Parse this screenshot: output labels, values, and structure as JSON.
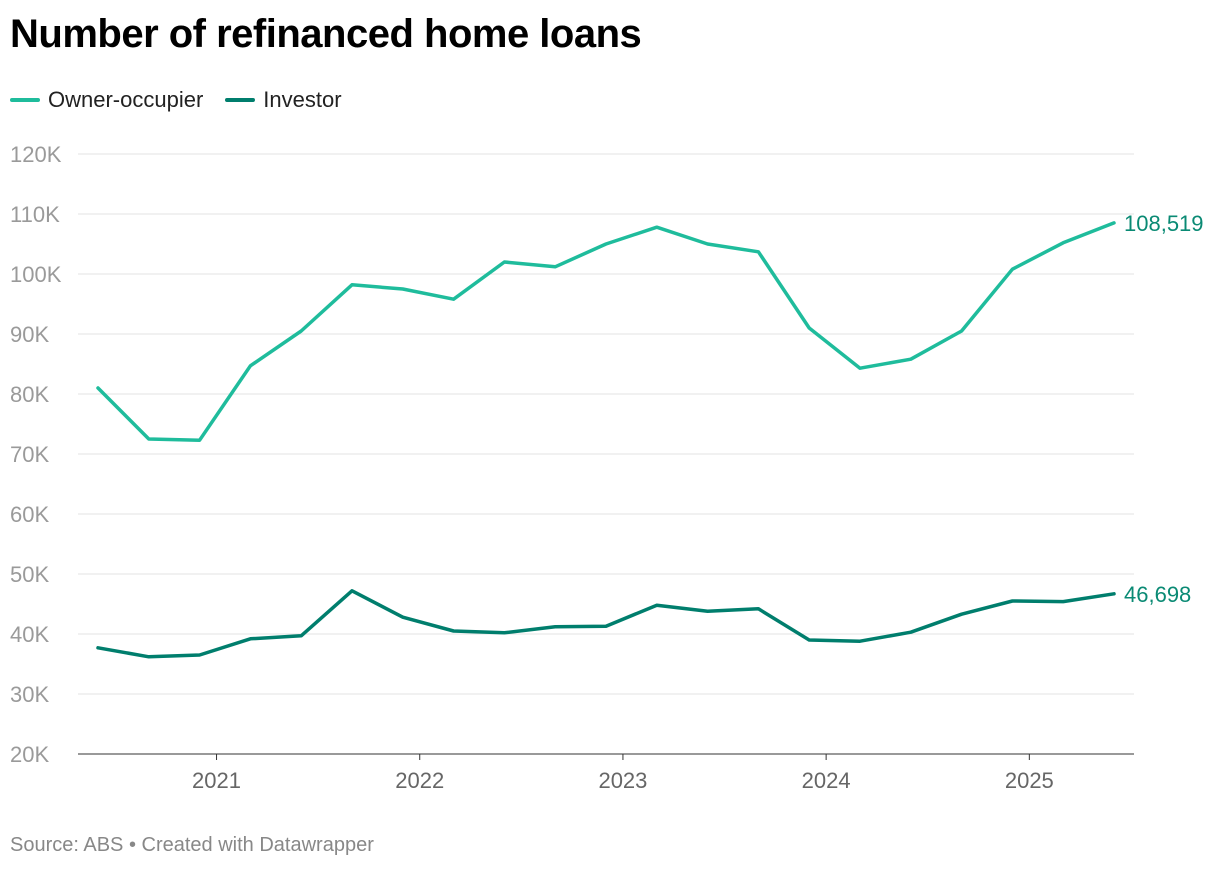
{
  "chart_data": {
    "type": "line",
    "title": "Number of refinanced home loans",
    "xlabel": "",
    "ylabel": "",
    "x": [
      "2020-06",
      "2020-09",
      "2020-12",
      "2021-03",
      "2021-06",
      "2021-09",
      "2021-12",
      "2022-03",
      "2022-06",
      "2022-09",
      "2022-12",
      "2023-03",
      "2023-06",
      "2023-09",
      "2023-12",
      "2024-03",
      "2024-06",
      "2024-09",
      "2024-12",
      "2025-03",
      "2025-06"
    ],
    "x_ticks": [
      "2021",
      "2022",
      "2023",
      "2024",
      "2025"
    ],
    "y_ticks": [
      "20K",
      "30K",
      "40K",
      "50K",
      "60K",
      "70K",
      "80K",
      "90K",
      "100K",
      "110K",
      "120K"
    ],
    "ylim": [
      20000,
      120000
    ],
    "grid": "horizontal",
    "legend_position": "top-left",
    "series": [
      {
        "name": "Owner-occupier",
        "color": "#1fbc9c",
        "end_label": "108,519",
        "values": [
          81000,
          72500,
          72300,
          84700,
          90500,
          98200,
          97500,
          95800,
          102000,
          101200,
          105000,
          107800,
          105000,
          103700,
          91000,
          84300,
          85800,
          90500,
          100800,
          105200,
          108519
        ]
      },
      {
        "name": "Investor",
        "color": "#007e6d",
        "end_label": "46,698",
        "values": [
          37700,
          36200,
          36500,
          39200,
          39700,
          47200,
          42800,
          40500,
          40200,
          41200,
          41300,
          44800,
          43800,
          44200,
          39000,
          38800,
          40300,
          43300,
          45500,
          45400,
          46698
        ]
      }
    ],
    "label_color": "#0a8a74"
  },
  "footer": "Source: ABS • Created with Datawrapper"
}
